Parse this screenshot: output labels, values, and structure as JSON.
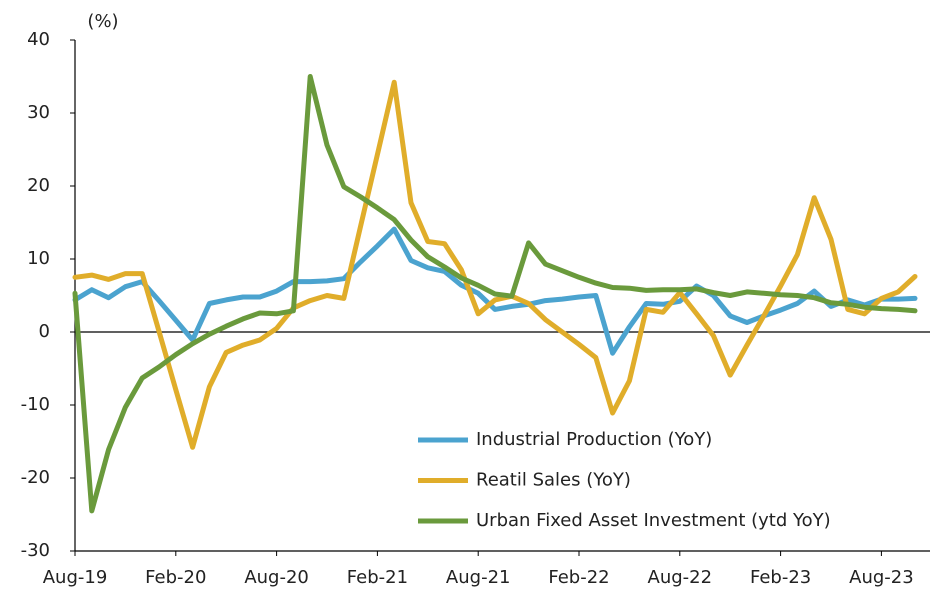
{
  "chart_data": {
    "type": "line",
    "y_unit_label": "(%)",
    "categories": [
      "Aug-19",
      null,
      null,
      null,
      null,
      null,
      "Feb-20",
      null,
      null,
      null,
      null,
      null,
      "Aug-20",
      null,
      null,
      null,
      null,
      null,
      "Feb-21",
      null,
      null,
      null,
      null,
      null,
      "Aug-21",
      null,
      null,
      null,
      null,
      null,
      "Feb-22",
      null,
      null,
      null,
      null,
      null,
      "Aug-22",
      null,
      null,
      null,
      null,
      null,
      "Feb-23",
      null,
      null,
      null,
      null,
      null,
      "Aug-23",
      null,
      null
    ],
    "series": [
      {
        "name": "Industrial Production (YoY)",
        "color": "#4ba3cf",
        "values": [
          4.4,
          5.8,
          4.7,
          6.2,
          6.9,
          4.3,
          1.6,
          -1.1,
          3.9,
          4.4,
          4.8,
          4.8,
          5.6,
          6.9,
          6.9,
          7.0,
          7.3,
          9.6,
          11.8,
          14.1,
          9.8,
          8.8,
          8.3,
          6.4,
          5.3,
          3.1,
          3.5,
          3.8,
          4.3,
          4.5,
          4.8,
          5.0,
          -2.9,
          0.7,
          3.9,
          3.8,
          4.2,
          6.3,
          5.0,
          2.2,
          1.3,
          2.2,
          3.0,
          3.9,
          5.6,
          3.5,
          4.4,
          3.7,
          4.5,
          4.5,
          4.6
        ]
      },
      {
        "name": "Reatil Sales (YoY)",
        "color": "#e0ad2a",
        "values": [
          7.5,
          7.8,
          7.2,
          8.0,
          8.0,
          0.1,
          -7.9,
          -15.8,
          -7.5,
          -2.8,
          -1.8,
          -1.1,
          0.5,
          3.3,
          4.3,
          5.0,
          4.6,
          14.5,
          24.3,
          34.2,
          17.7,
          12.4,
          12.1,
          8.5,
          2.5,
          4.4,
          4.9,
          3.9,
          1.7,
          0.0,
          -1.7,
          -3.5,
          -11.1,
          -6.7,
          3.1,
          2.7,
          5.4,
          2.5,
          -0.5,
          -5.9,
          -1.8,
          2.2,
          6.3,
          10.6,
          18.4,
          12.7,
          3.1,
          2.5,
          4.6,
          5.5,
          7.6
        ]
      },
      {
        "name": "Urban Fixed Asset Investment (ytd YoY)",
        "color": "#6a9a3c",
        "values": [
          5.3,
          -24.5,
          -16.1,
          -10.3,
          -6.3,
          -4.8,
          -3.1,
          -1.6,
          -0.3,
          0.8,
          1.8,
          2.6,
          2.5,
          2.9,
          35.0,
          25.6,
          19.9,
          18.5,
          17.0,
          15.4,
          12.6,
          10.3,
          8.9,
          7.4,
          6.4,
          5.2,
          4.9,
          12.2,
          9.3,
          8.4,
          7.5,
          6.7,
          6.1,
          6.0,
          5.7,
          5.8,
          5.8,
          5.9,
          5.4,
          5.0,
          5.5,
          5.3,
          5.1,
          5.0,
          4.7,
          4.0,
          3.8,
          3.4,
          3.2,
          3.1,
          2.9
        ]
      }
    ],
    "ylim": [
      -30,
      40
    ],
    "yticks": [
      -30,
      -20,
      -10,
      0,
      10,
      20,
      30,
      40
    ],
    "negative_tick_color": "#e00000",
    "grid": false,
    "legend": "lower-center"
  }
}
